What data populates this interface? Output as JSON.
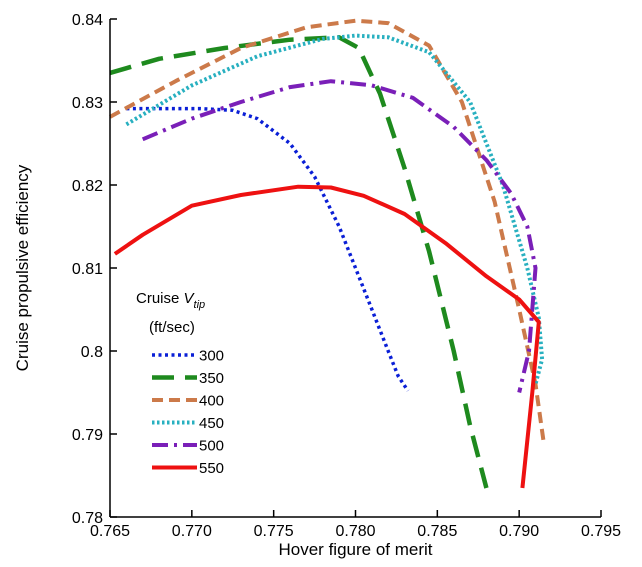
{
  "chart_data": {
    "type": "line",
    "xlabel": "Hover figure of merit",
    "ylabel": "Cruise propulsive efficiency",
    "xlim": [
      0.765,
      0.795
    ],
    "ylim": [
      0.78,
      0.84
    ],
    "xticks": [
      0.765,
      0.77,
      0.775,
      0.78,
      0.785,
      0.79,
      0.795
    ],
    "xtick_labels": [
      "0.765",
      "0.770",
      "0.775",
      "0.780",
      "0.785",
      "0.790",
      "0.795"
    ],
    "yticks": [
      0.78,
      0.79,
      0.8,
      0.81,
      0.82,
      0.83,
      0.84
    ],
    "ytick_labels": [
      "0.78",
      "0.79",
      "0.8",
      "0.81",
      "0.82",
      "0.83",
      "0.84"
    ],
    "grid": false,
    "legend": {
      "title_line1": "Cruise ",
      "title_v": "V",
      "title_sub": "tip",
      "title_line2": "(ft/sec)",
      "placement": "lower-left"
    },
    "series": [
      {
        "name": "300",
        "color": "#0a1fd6",
        "dash": "dot",
        "x": [
          0.766,
          0.768,
          0.7705,
          0.7725,
          0.774,
          0.776,
          0.7775,
          0.779,
          0.78,
          0.781,
          0.782,
          0.7826,
          0.7832
        ],
        "y": [
          0.8292,
          0.8292,
          0.8292,
          0.829,
          0.828,
          0.825,
          0.821,
          0.815,
          0.81,
          0.805,
          0.8,
          0.797,
          0.7952
        ]
      },
      {
        "name": "350",
        "color": "#1e8a1e",
        "dash": "longdash",
        "x": [
          0.765,
          0.768,
          0.772,
          0.776,
          0.779,
          0.7802,
          0.7815,
          0.783,
          0.7845,
          0.786,
          0.787,
          0.788
        ],
        "y": [
          0.8335,
          0.8352,
          0.8365,
          0.8375,
          0.8378,
          0.8365,
          0.831,
          0.822,
          0.812,
          0.8,
          0.791,
          0.7835
        ]
      },
      {
        "name": "400",
        "color": "#cc7a4a",
        "dash": "dash",
        "x": [
          0.765,
          0.769,
          0.773,
          0.777,
          0.78,
          0.782,
          0.7845,
          0.7865,
          0.7885,
          0.79,
          0.791,
          0.7915
        ],
        "y": [
          0.8282,
          0.8325,
          0.8365,
          0.839,
          0.8398,
          0.8395,
          0.8368,
          0.83,
          0.818,
          0.805,
          0.796,
          0.789
        ]
      },
      {
        "name": "450",
        "color": "#28b0c0",
        "dash": "finedot",
        "x": [
          0.766,
          0.77,
          0.774,
          0.778,
          0.78,
          0.782,
          0.7845,
          0.787,
          0.789,
          0.7905,
          0.7912,
          0.7914,
          0.791
        ],
        "y": [
          0.8273,
          0.832,
          0.8355,
          0.8376,
          0.838,
          0.8378,
          0.836,
          0.83,
          0.82,
          0.81,
          0.804,
          0.799,
          0.796
        ]
      },
      {
        "name": "500",
        "color": "#7a1fb8",
        "dash": "dashdot",
        "x": [
          0.767,
          0.77,
          0.773,
          0.776,
          0.7785,
          0.781,
          0.7835,
          0.786,
          0.788,
          0.7895,
          0.7905,
          0.791,
          0.7906,
          0.79
        ],
        "y": [
          0.8255,
          0.828,
          0.83,
          0.8318,
          0.8325,
          0.832,
          0.8305,
          0.827,
          0.823,
          0.819,
          0.815,
          0.81,
          0.8,
          0.795
        ]
      },
      {
        "name": "550",
        "color": "#ee1111",
        "dash": "solid",
        "x": [
          0.7653,
          0.767,
          0.77,
          0.773,
          0.7765,
          0.7785,
          0.7805,
          0.783,
          0.7855,
          0.788,
          0.79,
          0.7912,
          0.7908,
          0.7902
        ],
        "y": [
          0.8117,
          0.814,
          0.8175,
          0.8188,
          0.8198,
          0.8197,
          0.8187,
          0.8165,
          0.813,
          0.809,
          0.8062,
          0.8035,
          0.795,
          0.7835
        ]
      }
    ]
  }
}
